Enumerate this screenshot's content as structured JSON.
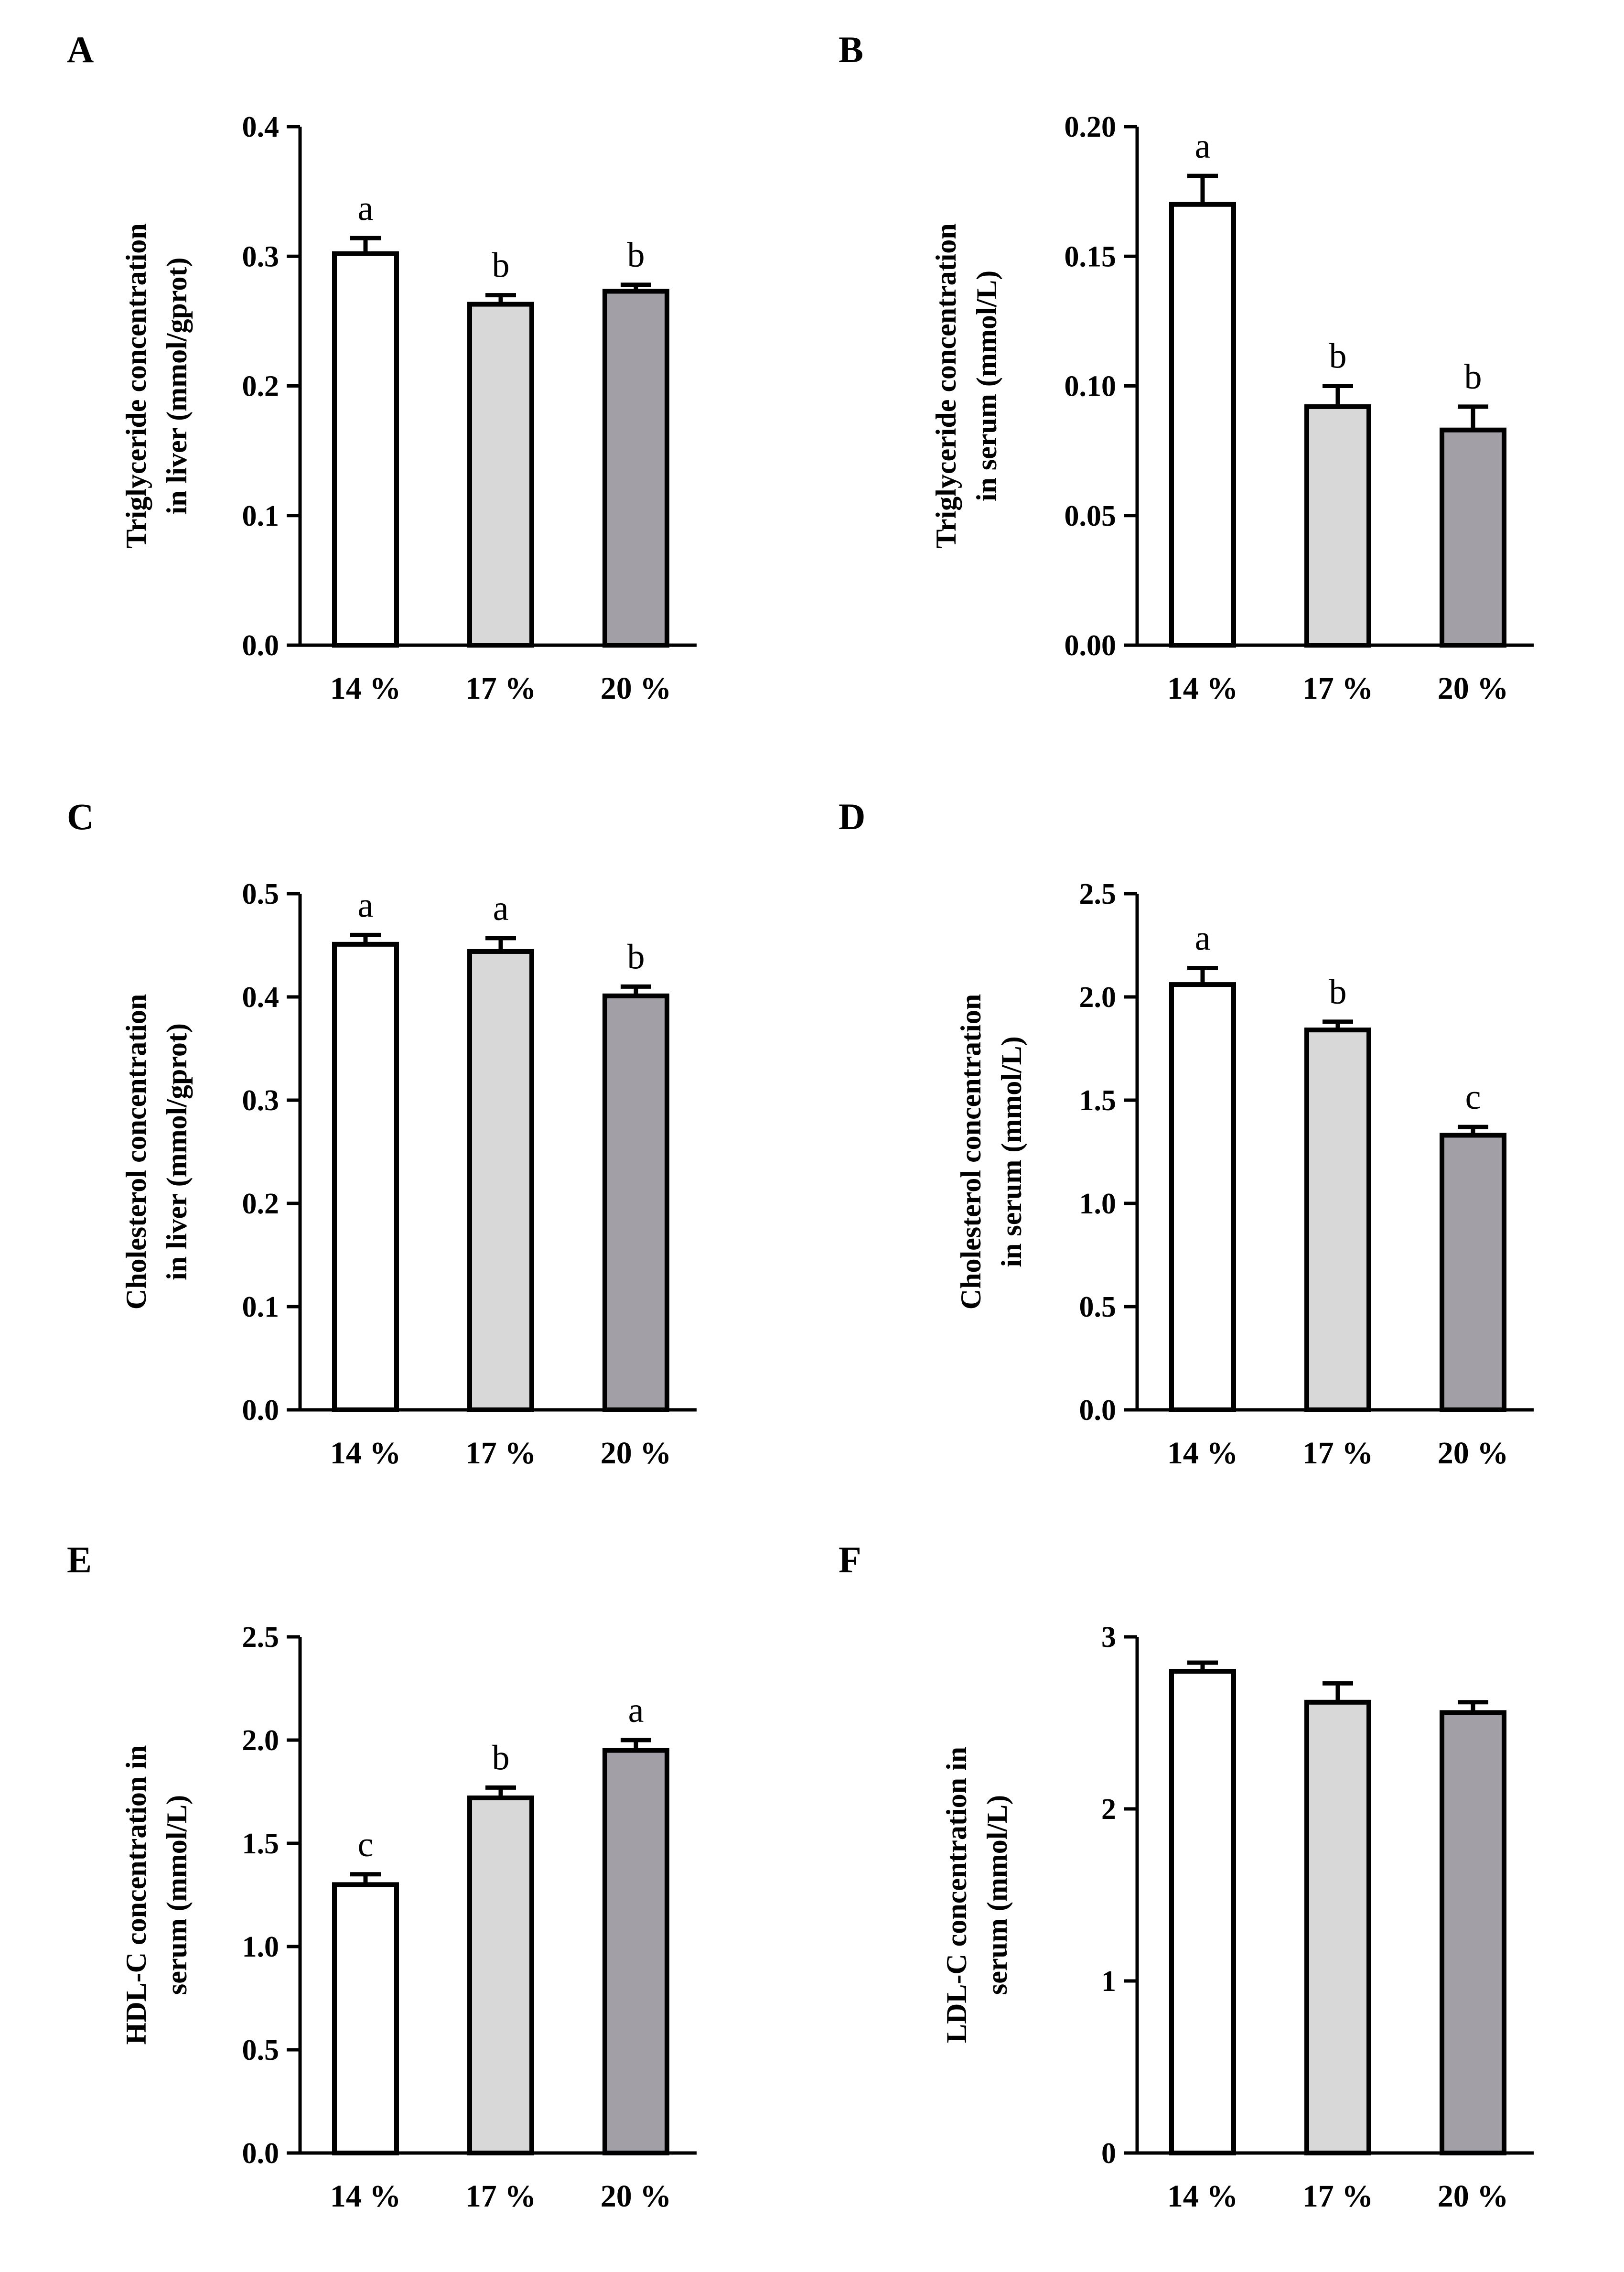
{
  "chart_data": [
    {
      "id": "A",
      "type": "bar",
      "panel_letter": "A",
      "ylabel_lines": [
        "Triglyceride concentration",
        "in liver (mmol/gprot)"
      ],
      "categories": [
        "14 %",
        "17 %",
        "20 %"
      ],
      "values": [
        0.302,
        0.263,
        0.273
      ],
      "errors": [
        0.012,
        0.007,
        0.005
      ],
      "sig_letters": [
        "a",
        "b",
        "b"
      ],
      "ylim": [
        0,
        0.4
      ],
      "yticks": [
        0,
        0.1,
        0.2,
        0.3,
        0.4
      ],
      "ytick_labels": [
        "0.0",
        "0.1",
        "0.2",
        "0.3",
        "0.4"
      ]
    },
    {
      "id": "B",
      "type": "bar",
      "panel_letter": "B",
      "ylabel_lines": [
        "Triglyceride concentration",
        "in serum (mmol/L)"
      ],
      "categories": [
        "14 %",
        "17 %",
        "20 %"
      ],
      "values": [
        0.17,
        0.092,
        0.083
      ],
      "errors": [
        0.011,
        0.008,
        0.009
      ],
      "sig_letters": [
        "a",
        "b",
        "b"
      ],
      "ylim": [
        0,
        0.2
      ],
      "yticks": [
        0,
        0.05,
        0.1,
        0.15,
        0.2
      ],
      "ytick_labels": [
        "0.00",
        "0.05",
        "0.10",
        "0.15",
        "0.20"
      ]
    },
    {
      "id": "C",
      "type": "bar",
      "panel_letter": "C",
      "ylabel_lines": [
        "Cholesterol concentration",
        "in liver (mmol/gprot)"
      ],
      "categories": [
        "14 %",
        "17 %",
        "20 %"
      ],
      "values": [
        0.451,
        0.444,
        0.401
      ],
      "errors": [
        0.009,
        0.013,
        0.009
      ],
      "sig_letters": [
        "a",
        "a",
        "b"
      ],
      "ylim": [
        0,
        0.5
      ],
      "yticks": [
        0,
        0.1,
        0.2,
        0.3,
        0.4,
        0.5
      ],
      "ytick_labels": [
        "0.0",
        "0.1",
        "0.2",
        "0.3",
        "0.4",
        "0.5"
      ]
    },
    {
      "id": "D",
      "type": "bar",
      "panel_letter": "D",
      "ylabel_lines": [
        "Cholesterol concentration",
        "in serum (mmol/L)"
      ],
      "categories": [
        "14 %",
        "17 %",
        "20 %"
      ],
      "values": [
        2.06,
        1.84,
        1.33
      ],
      "errors": [
        0.08,
        0.04,
        0.04
      ],
      "sig_letters": [
        "a",
        "b",
        "c"
      ],
      "ylim": [
        0,
        2.5
      ],
      "yticks": [
        0,
        0.5,
        1.0,
        1.5,
        2.0,
        2.5
      ],
      "ytick_labels": [
        "0.0",
        "0.5",
        "1.0",
        "1.5",
        "2.0",
        "2.5"
      ]
    },
    {
      "id": "E",
      "type": "bar",
      "panel_letter": "E",
      "ylabel_lines": [
        "HDL-C concentration in",
        "serum (mmol/L)"
      ],
      "categories": [
        "14 %",
        "17 %",
        "20 %"
      ],
      "values": [
        1.3,
        1.72,
        1.95
      ],
      "errors": [
        0.05,
        0.05,
        0.05
      ],
      "sig_letters": [
        "c",
        "b",
        "a"
      ],
      "ylim": [
        0,
        2.5
      ],
      "yticks": [
        0,
        0.5,
        1.0,
        1.5,
        2.0,
        2.5
      ],
      "ytick_labels": [
        "0.0",
        "0.5",
        "1.0",
        "1.5",
        "2.0",
        "2.5"
      ]
    },
    {
      "id": "F",
      "type": "bar",
      "panel_letter": "F",
      "ylabel_lines": [
        "LDL-C concentration in",
        "serum (mmol/L)"
      ],
      "categories": [
        "14 %",
        "17 %",
        "20 %"
      ],
      "values": [
        2.8,
        2.62,
        2.56
      ],
      "errors": [
        0.05,
        0.11,
        0.06
      ],
      "sig_letters": [
        "",
        "",
        ""
      ],
      "ylim": [
        0,
        3
      ],
      "yticks": [
        0,
        1,
        2,
        3
      ],
      "ytick_labels": [
        "0",
        "1",
        "2",
        "3"
      ]
    }
  ],
  "bar_fills": [
    "#ffffff",
    "#d8d8d8",
    "#a2a0a6"
  ]
}
